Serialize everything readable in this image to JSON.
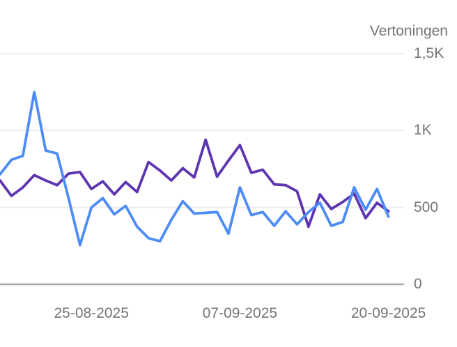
{
  "header": {
    "metric_label": "Vertoningen"
  },
  "colors": {
    "blue_series": "#4e8df7",
    "purple_series": "#5e35b1",
    "gridline": "#ebebeb",
    "axis_line": "#a8a8a8",
    "axis_text": "#757575"
  },
  "y_axis": {
    "ticks": [
      {
        "label": "0",
        "value": 0
      },
      {
        "label": "500",
        "value": 500
      },
      {
        "label": "1K",
        "value": 1000
      },
      {
        "label": "1,5K",
        "value": 1500
      }
    ]
  },
  "x_axis": {
    "ticks": [
      {
        "label": "25-08-2025",
        "day_index": 8
      },
      {
        "label": "07-09-2025",
        "day_index": 21
      },
      {
        "label": "20-09-2025",
        "day_index": 34
      }
    ]
  },
  "chart_data": {
    "type": "line",
    "title": "Vertoningen",
    "ylabel": "Vertoningen",
    "ylim": [
      0,
      1500
    ],
    "grid": true,
    "legend_position": "none",
    "x": [
      "17-08-2025",
      "18-08-2025",
      "19-08-2025",
      "20-08-2025",
      "21-08-2025",
      "22-08-2025",
      "23-08-2025",
      "24-08-2025",
      "25-08-2025",
      "26-08-2025",
      "27-08-2025",
      "28-08-2025",
      "29-08-2025",
      "30-08-2025",
      "31-08-2025",
      "01-09-2025",
      "02-09-2025",
      "03-09-2025",
      "04-09-2025",
      "05-09-2025",
      "06-09-2025",
      "07-09-2025",
      "08-09-2025",
      "09-09-2025",
      "10-09-2025",
      "11-09-2025",
      "12-09-2025",
      "13-09-2025",
      "14-09-2025",
      "15-09-2025",
      "16-09-2025",
      "17-09-2025",
      "18-09-2025",
      "19-09-2025",
      "20-09-2025"
    ],
    "series": [
      {
        "name": "purple",
        "color": "#5e35b1",
        "values": [
          675,
          575,
          630,
          710,
          675,
          645,
          720,
          730,
          620,
          670,
          585,
          665,
          600,
          795,
          740,
          675,
          755,
          695,
          940,
          700,
          805,
          905,
          725,
          745,
          650,
          645,
          605,
          375,
          585,
          490,
          535,
          590,
          430,
          530,
          475
        ]
      },
      {
        "name": "blue",
        "color": "#4e8df7",
        "values": [
          715,
          810,
          835,
          1250,
          870,
          850,
          560,
          255,
          500,
          560,
          455,
          510,
          375,
          300,
          280,
          420,
          540,
          460,
          465,
          470,
          330,
          630,
          450,
          470,
          380,
          475,
          390,
          470,
          530,
          380,
          405,
          630,
          485,
          620,
          440
        ]
      }
    ]
  }
}
